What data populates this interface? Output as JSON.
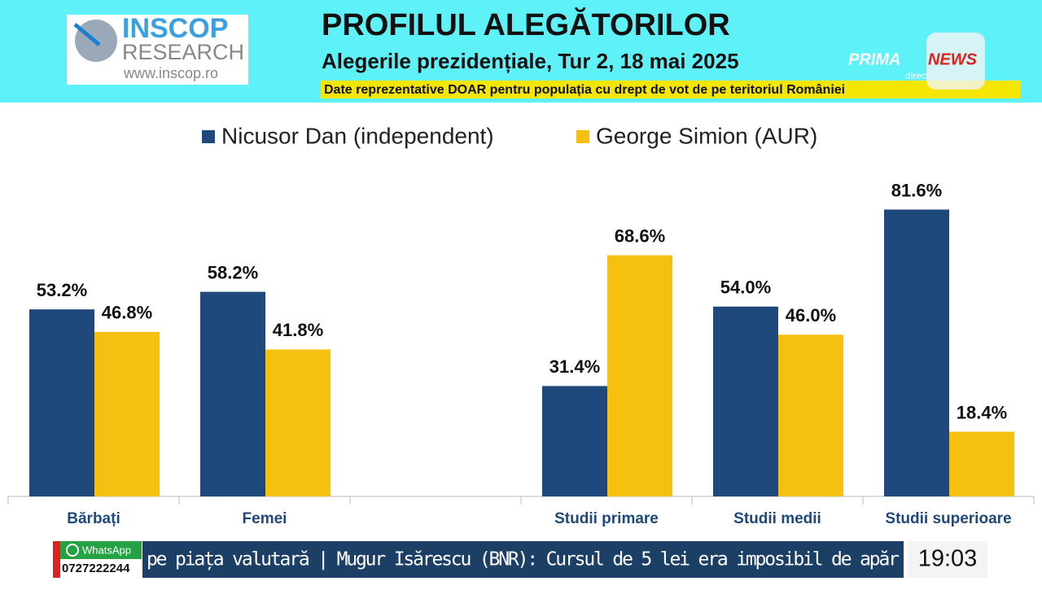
{
  "header": {
    "logo": {
      "name": "INSCOP",
      "sub": "RESEARCH",
      "url": "www.inscop.ro"
    },
    "title": "PROFILUL ALEGĂTORILOR",
    "subtitle": "Alegerile prezidențiale, Tur 2, 18 mai 2025",
    "note": "Date reprezentative DOAR pentru populația cu drept de vot de pe teritoriul României",
    "channel": {
      "prima": "PRIMA",
      "news": "NEWS",
      "direct": "direct"
    }
  },
  "chart_data": {
    "type": "bar",
    "categories": [
      "Bărbați",
      "Femei",
      null,
      "Studii primare",
      "Studii medii",
      "Studii superioare"
    ],
    "series": [
      {
        "name": "Nicusor Dan (independent)",
        "color": "#1f497d",
        "values": [
          53.2,
          58.2,
          null,
          31.4,
          54.0,
          81.6
        ],
        "value_labels": [
          "53.2%",
          "58.2%",
          null,
          "31.4%",
          "54.0%",
          "81.6%"
        ]
      },
      {
        "name": "George Simion (AUR)",
        "color": "#f5c010",
        "values": [
          46.8,
          41.8,
          null,
          68.6,
          46.0,
          18.4
        ],
        "value_labels": [
          "46.8%",
          "41.8%",
          null,
          "68.6%",
          "46.0%",
          "18.4%"
        ]
      }
    ],
    "ylim": [
      0,
      100
    ]
  },
  "footer": {
    "whatsapp": "WhatsApp",
    "phone": "0727222244",
    "ticker": "pe piața valutară | Mugur Isărescu (BNR): Cursul de 5 lei era imposibil de apăr",
    "clock": "19:03"
  }
}
